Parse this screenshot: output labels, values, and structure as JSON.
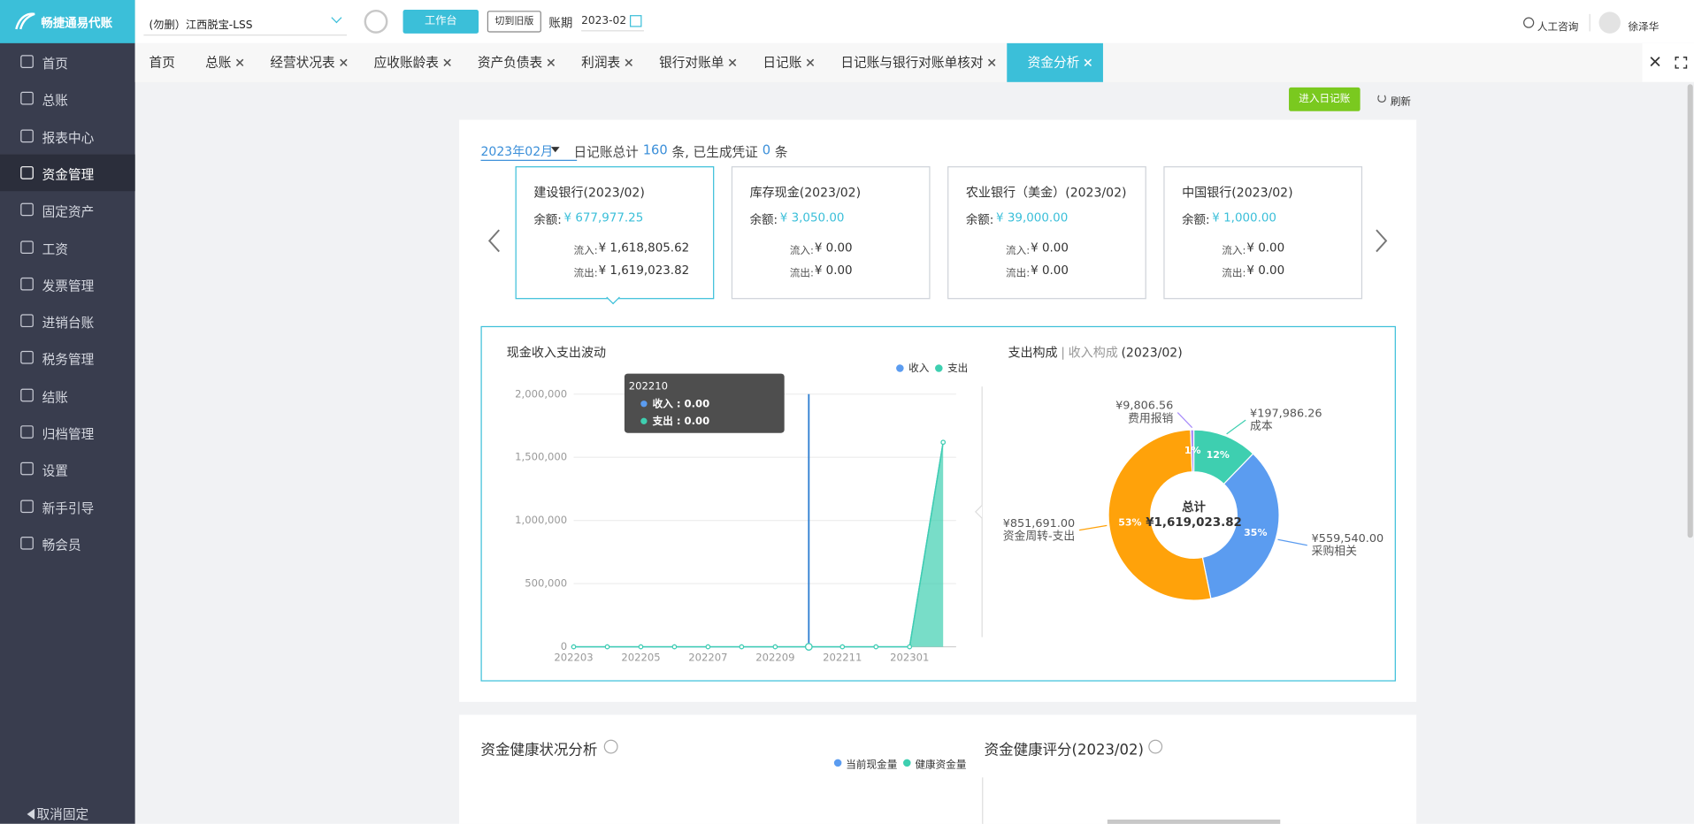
{
  "header": {
    "logo": "畅捷通易代账",
    "company": "(勿删）江西脱宝-LSS",
    "workbench": "工作台",
    "switch_version": "切到旧版",
    "period_label": "账期",
    "period": "2023-02",
    "support": "人工咨询",
    "user": "徐泽华"
  },
  "sidebar": {
    "items": [
      "首页",
      "总账",
      "报表中心",
      "资金管理",
      "固定资产",
      "工资",
      "发票管理",
      "进销台账",
      "税务管理",
      "结账",
      "归档管理",
      "设置",
      "新手引导",
      "畅会员"
    ],
    "active": 3,
    "footer": "取消固定"
  },
  "tabs": {
    "items": [
      "首页",
      "总账",
      "经营状况表",
      "应收账龄表",
      "资产负债表",
      "利润表",
      "银行对账单",
      "日记账",
      "日记账与银行对账单核对",
      "资金分析"
    ],
    "active": 9
  },
  "toolbar": {
    "enter_journal": "进入日记账",
    "refresh": "刷新"
  },
  "summary": {
    "month": "2023年02月",
    "prefix": "日记账总计",
    "entries": 160,
    "middle": "条, 已生成凭证",
    "vouchers": 0,
    "suffix": "条"
  },
  "accounts": {
    "selected": 0,
    "items": [
      {
        "name": "建设银行(2023/02)",
        "balance_label": "余额:",
        "balance": "¥ 677,977.25",
        "inflow_label": "流入:",
        "inflow": "¥ 1,618,805.62",
        "outflow_label": "流出:",
        "outflow": "¥ 1,619,023.82"
      },
      {
        "name": "库存现金(2023/02)",
        "balance_label": "余额:",
        "balance": "¥ 3,050.00",
        "inflow_label": "流入:",
        "inflow": "¥ 0.00",
        "outflow_label": "流出:",
        "outflow": "¥ 0.00"
      },
      {
        "name": "农业银行（美金）(2023/02)",
        "balance_label": "余额:",
        "balance": "¥ 39,000.00",
        "inflow_label": "流入:",
        "inflow": "¥ 0.00",
        "outflow_label": "流出:",
        "outflow": "¥ 0.00"
      },
      {
        "name": "中国银行(2023/02)",
        "balance_label": "余额:",
        "balance": "¥ 1,000.00",
        "inflow_label": "流入:",
        "inflow": "¥ 0.00",
        "outflow_label": "流出:",
        "outflow": "¥ 0.00"
      }
    ]
  },
  "chart_data": [
    {
      "type": "line",
      "title": "现金收入支出波动",
      "categories": [
        "202203",
        null,
        "202205",
        null,
        "202207",
        null,
        "202209",
        null,
        "202211",
        null,
        "202301",
        null
      ],
      "series": [
        {
          "name": "收入",
          "color": "#5b9cf0",
          "values": [
            0,
            0,
            0,
            0,
            0,
            0,
            0,
            0,
            0,
            0,
            0,
            1618805.62
          ]
        },
        {
          "name": "支出",
          "color": "#3ecfb0",
          "values": [
            0,
            0,
            0,
            0,
            0,
            0,
            0,
            0,
            0,
            0,
            0,
            1619023.82
          ]
        }
      ],
      "ylim": [
        0,
        2000000
      ],
      "yticks": [
        0,
        {
          "value": 500000,
          "label": "500,000"
        },
        {
          "value": 1000000,
          "label": "1,000,000"
        },
        {
          "value": 1500000,
          "label": "1,500,000"
        },
        {
          "value": 2000000,
          "label": "2,000,000"
        }
      ],
      "grid": true,
      "legend": "top-right",
      "tooltip": {
        "title": "202210",
        "items": [
          "收入 : 0.00",
          "支出 : 0.00"
        ]
      }
    },
    {
      "type": "pie",
      "title": "支出构成",
      "alt_title": "收入构成",
      "period": "(2023/02)",
      "categories": [
        "成本",
        "采购相关",
        "资金周转-支出",
        "费用报销"
      ],
      "values": [
        197986.26,
        559540.0,
        851691.0,
        9806.56
      ],
      "value_labels": [
        "¥197,986.26",
        "¥559,540.00",
        "¥851,691.00",
        "¥9,806.56"
      ],
      "percent_labels": [
        "12%",
        "35%",
        "53%",
        "1%"
      ],
      "colors": [
        "#3ecfb0",
        "#5b9cf0",
        "#ffa20a",
        "#a78bfa"
      ],
      "center_label": "总计",
      "center_value": "¥1,619,023.82"
    }
  ],
  "health": {
    "title": "资金健康状况分析",
    "legend": [
      "当前现金量",
      "健康资金量"
    ],
    "legend_colors": [
      "#5b9cf0",
      "#3ecfb0"
    ],
    "score_title": "资金健康评分(2023/02)"
  }
}
